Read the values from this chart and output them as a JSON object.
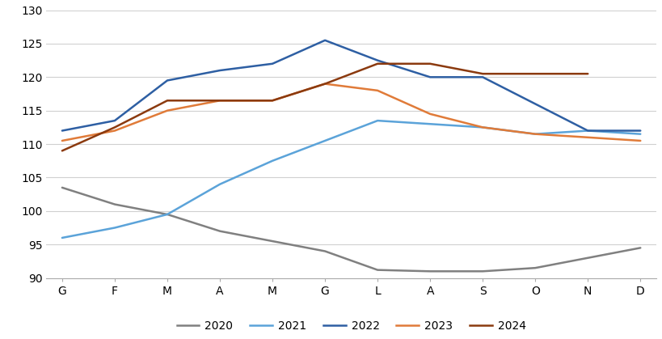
{
  "months": [
    "G",
    "F",
    "M",
    "A",
    "M",
    "G",
    "L",
    "A",
    "S",
    "O",
    "N",
    "D"
  ],
  "series": {
    "2020": [
      103.5,
      101.0,
      99.5,
      97.0,
      95.5,
      94.0,
      91.2,
      91.0,
      91.0,
      91.5,
      null,
      94.5
    ],
    "2021": [
      96.0,
      97.5,
      99.5,
      104.0,
      107.5,
      110.5,
      113.5,
      113.0,
      112.5,
      111.5,
      112.0,
      111.5
    ],
    "2022": [
      112.0,
      113.5,
      119.5,
      121.0,
      122.0,
      125.5,
      122.5,
      120.0,
      120.0,
      116.0,
      112.0,
      112.0
    ],
    "2023": [
      110.5,
      112.0,
      115.0,
      116.5,
      116.5,
      119.0,
      118.0,
      114.5,
      112.5,
      111.5,
      111.0,
      110.5
    ],
    "2024": [
      109.0,
      112.5,
      116.5,
      116.5,
      116.5,
      119.0,
      122.0,
      122.0,
      120.5,
      120.5,
      120.5,
      null
    ]
  },
  "colors": {
    "2020": "#808080",
    "2021": "#5BA3D9",
    "2022": "#2E5FA3",
    "2023": "#E07B39",
    "2024": "#8B3A0F"
  },
  "ylim": [
    90,
    130
  ],
  "yticks": [
    90,
    95,
    100,
    105,
    110,
    115,
    120,
    125,
    130
  ],
  "background_color": "#ffffff",
  "grid_color": "#d0d0d0"
}
